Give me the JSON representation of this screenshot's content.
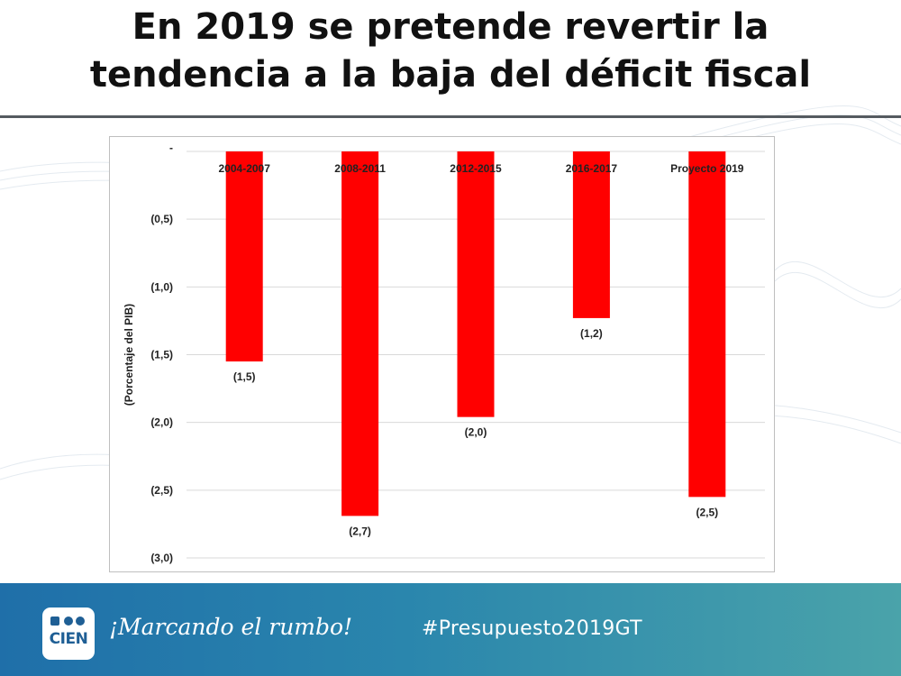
{
  "slide": {
    "title_line1": "En 2019 se pretende revertir la",
    "title_line2": "tendencia a la baja del déficit fiscal"
  },
  "footer": {
    "logo_text": "CIEN",
    "tagline": "¡Marcando el rumbo!",
    "hashtag": "#Presupuesto2019GT"
  },
  "colors": {
    "bar": "#ff0000",
    "footer_start": "#1f6fa9",
    "footer_end": "#4aa3aa"
  },
  "chart_data": {
    "type": "bar",
    "categories": [
      "2004-2007",
      "2008-2011",
      "2012-2015",
      "2016-2017",
      "Proyecto 2019"
    ],
    "values": [
      -1.55,
      -2.69,
      -1.96,
      -1.23,
      -2.55
    ],
    "data_labels": [
      "(1,5)",
      "(2,7)",
      "(2,0)",
      "(1,2)",
      "(2,5)"
    ],
    "ylabel": "(Porcentaje del PIB)",
    "ylim": [
      -3.0,
      0
    ],
    "yticks": [
      0,
      -0.5,
      -1.0,
      -1.5,
      -2.0,
      -2.5,
      -3.0
    ],
    "ytick_labels": [
      "-",
      "(0,5)",
      "(1,0)",
      "(1,5)",
      "(2,0)",
      "(2,5)",
      "(3,0)"
    ],
    "grid": true,
    "category_labels_position": "top"
  }
}
